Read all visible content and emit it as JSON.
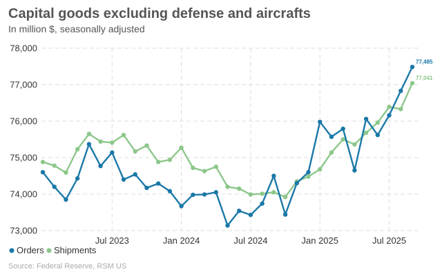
{
  "chart_data": {
    "type": "line",
    "title": "Capital goods excluding defense and aircrafts",
    "subtitle": "In million $, seasonally adjusted",
    "source": "Source: Federal Reserve, RSM US",
    "xlabel": "",
    "ylabel": "",
    "ylim": [
      73000,
      78000
    ],
    "yticks": [
      73000,
      74000,
      75000,
      76000,
      77000,
      78000
    ],
    "ytick_labels": [
      "73,000",
      "74,000",
      "75,000",
      "76,000",
      "77,000",
      "78,000"
    ],
    "x": [
      "Jan 2023",
      "Feb 2023",
      "Mar 2023",
      "Apr 2023",
      "May 2023",
      "Jun 2023",
      "Jul 2023",
      "Aug 2023",
      "Sep 2023",
      "Oct 2023",
      "Nov 2023",
      "Dec 2023",
      "Jan 2024",
      "Feb 2024",
      "Mar 2024",
      "Apr 2024",
      "May 2024",
      "Jun 2024",
      "Jul 2024",
      "Aug 2024",
      "Sep 2024",
      "Oct 2024",
      "Nov 2024",
      "Dec 2024",
      "Jan 2025",
      "Feb 2025",
      "Mar 2025",
      "Apr 2025",
      "May 2025",
      "Jun 2025",
      "Jul 2025",
      "Aug 2025",
      "Sep 2025"
    ],
    "xticks": [
      "Jul 2023",
      "Jan 2024",
      "Jul 2024",
      "Jan 2025",
      "Jul 2025"
    ],
    "grid": true,
    "legend_position": "bottom-left",
    "series": [
      {
        "name": "Orders",
        "color": "#1a78a8",
        "values": [
          74600,
          74200,
          73850,
          74430,
          75370,
          74770,
          75140,
          74400,
          74540,
          74170,
          74290,
          74080,
          73670,
          73980,
          73990,
          74050,
          73140,
          73540,
          73430,
          73740,
          74500,
          73440,
          74300,
          74600,
          75980,
          75570,
          75790,
          74650,
          76060,
          75620,
          76160,
          76830,
          77485
        ],
        "end_label": "77,485"
      },
      {
        "name": "Shipments",
        "color": "#8cc78a",
        "values": [
          74880,
          74780,
          74590,
          75230,
          75650,
          75440,
          75410,
          75620,
          75170,
          75330,
          74880,
          74940,
          75270,
          74720,
          74630,
          74750,
          74200,
          74150,
          73990,
          74010,
          74050,
          73920,
          74350,
          74480,
          74680,
          75140,
          75500,
          75360,
          75680,
          75960,
          76390,
          76330,
          77041
        ],
        "end_label": "77,041"
      }
    ]
  }
}
